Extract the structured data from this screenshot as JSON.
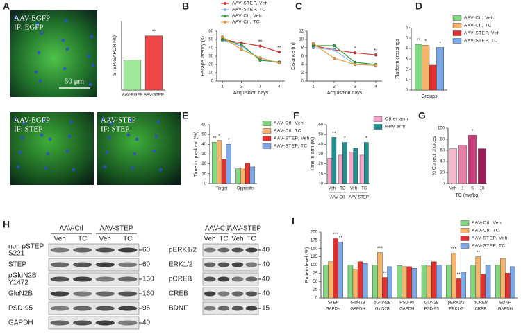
{
  "figure": {
    "images": {
      "label": "A",
      "items": [
        {
          "lines": [
            "AAV-EGFP",
            "IF: EGFP"
          ],
          "scale": "50 μm"
        },
        {
          "lines": [
            "AAV-EGFP",
            "IF: STEP"
          ]
        },
        {
          "lines": [
            "AAV-STEP",
            "IF: STEP"
          ]
        }
      ]
    },
    "blots": {
      "label": "H",
      "panels": [
        {
          "groups": [
            "AAV-Ctl",
            "AAV-STEP"
          ],
          "lanes": [
            "Veh",
            "TC",
            "Veh",
            "TC"
          ],
          "rows": [
            {
              "lines": [
                "non pSTEP",
                "S221"
              ],
              "mw": 60
            },
            {
              "lines": [
                "STEP"
              ],
              "mw": 60
            },
            {
              "lines": [
                "pGluN2B",
                "Y1472"
              ],
              "mw": 160
            },
            {
              "lines": [
                "GluN2B"
              ],
              "mw": 160
            },
            {
              "lines": [
                "PSD-95"
              ],
              "mw": 95
            },
            {
              "lines": [
                "GAPDH"
              ],
              "mw": 40
            }
          ]
        },
        {
          "groups": [
            "AAV-Ctl",
            "AAV-STEP"
          ],
          "lanes": [
            "Veh",
            "TC",
            "Veh",
            "TC"
          ],
          "rows": [
            {
              "lines": [
                "pERK1/2"
              ],
              "mw": 40
            },
            {
              "lines": [
                "ERK1/2"
              ],
              "mw": 40
            },
            {
              "lines": [
                "pCREB"
              ],
              "mw": 40
            },
            {
              "lines": [
                "CREB"
              ],
              "mw": 40
            },
            {
              "lines": [
                "BDNF"
              ],
              "mw": 15
            }
          ]
        }
      ]
    }
  },
  "chart_data": [
    {
      "type": "bar",
      "ylabel": "STEP/GAPDH (%)",
      "categories": [
        "AAV-EGFP",
        "AAV-STEP"
      ],
      "series": [
        {
          "colors": [
            "#9ee89a",
            "#ef4747"
          ],
          "values": [
            100,
            180
          ]
        }
      ],
      "ylim": [
        0,
        230
      ],
      "annotations": [
        {
          "text": "**",
          "category": 1
        }
      ]
    },
    {
      "type": "line",
      "label": "B",
      "ylabel": "Escape latency (s)",
      "xlabel": "Acquisition days",
      "x": [
        1,
        2,
        3,
        4
      ],
      "xlim": [
        0.7,
        4.3
      ],
      "xticks": [
        1,
        2,
        3,
        4
      ],
      "ylim": [
        0,
        60
      ],
      "yticks": [
        0,
        10,
        20,
        30,
        40,
        50,
        60
      ],
      "legend": "top",
      "series": [
        {
          "name": "AAV-STEP, Veh",
          "color": "#d93030",
          "values": [
            50,
            46,
            42,
            35
          ]
        },
        {
          "name": "AAV-STEP, TC",
          "color": "#8fb4e8",
          "values": [
            49,
            42,
            26,
            22
          ]
        },
        {
          "name": "AAV-Ctl, Veh",
          "color": "#2e9e3a",
          "values": [
            50,
            44,
            25,
            23
          ]
        },
        {
          "name": "AAV-Ctl, TC",
          "color": "#e8a040",
          "values": [
            53,
            38,
            28,
            22
          ]
        }
      ],
      "annotations": [
        {
          "text": "**",
          "x": 3
        },
        {
          "text": "**",
          "x": 4
        }
      ]
    },
    {
      "type": "line",
      "label": "C",
      "ylabel": "Distance (m)",
      "xlabel": "Acquisition days",
      "x": [
        1,
        2,
        3,
        4
      ],
      "xlim": [
        0.7,
        4.3
      ],
      "xticks": [
        1,
        2,
        3,
        4
      ],
      "ylim": [
        0,
        12
      ],
      "yticks": [
        0,
        2,
        4,
        6,
        8,
        10,
        12
      ],
      "series": [
        {
          "color": "#d93030",
          "values": [
            8.5,
            7.5,
            6.8,
            6.3
          ]
        },
        {
          "color": "#8fb4e8",
          "values": [
            8,
            7.5,
            4,
            3.8
          ]
        },
        {
          "color": "#2e9e3a",
          "values": [
            8.5,
            8.5,
            4.5,
            4
          ]
        },
        {
          "color": "#e8a040",
          "values": [
            9,
            5.5,
            4,
            3.8
          ]
        }
      ],
      "annotations": [
        {
          "text": "*",
          "x": 3
        },
        {
          "text": "**",
          "x": 4
        }
      ]
    },
    {
      "type": "bar",
      "label": "D",
      "ylabel": "Platform crossings",
      "xlabel": "Groups",
      "categories": [
        null
      ],
      "ylim": [
        0,
        6
      ],
      "yticks": [
        0,
        1,
        2,
        3,
        4,
        5,
        6
      ],
      "legend": "right",
      "series": [
        {
          "name": "AAV-Ctl, Veh",
          "color": "#80d880",
          "values": [
            4.4
          ]
        },
        {
          "name": "AAV-Ctl, TC",
          "color": "#f5b46a",
          "values": [
            4.3
          ]
        },
        {
          "name": "AAV-STEP, Veh",
          "color": "#e03030",
          "values": [
            2.4
          ]
        },
        {
          "name": "AAV-STEP, TC",
          "color": "#7aa8e8",
          "values": [
            4.1
          ]
        }
      ],
      "annotations": [
        {
          "text": "**",
          "category": 0,
          "series": 0
        },
        {
          "text": "*",
          "category": 0,
          "series": 1
        },
        {
          "text": "*",
          "category": 0,
          "series": 3
        }
      ]
    },
    {
      "type": "bar",
      "label": "E",
      "ylabel": "Time in quadrant (%)",
      "categories": [
        "Target",
        "Opposite"
      ],
      "ylim": [
        0,
        60
      ],
      "yticks": [
        0,
        10,
        20,
        30,
        40,
        50,
        60
      ],
      "legend": "right",
      "series": [
        {
          "name": "AAV-Ctl, Veh",
          "color": "#80d880",
          "values": [
            42,
            15
          ]
        },
        {
          "name": "AAV-Ctl, TC",
          "color": "#f5b46a",
          "values": [
            44,
            16
          ]
        },
        {
          "name": "AAV-STEP, Veh",
          "color": "#e03030",
          "values": [
            25,
            21
          ]
        },
        {
          "name": "AAV-STEP, TC",
          "color": "#7aa8e8",
          "values": [
            40,
            17
          ]
        }
      ],
      "annotations": [
        {
          "text": "**",
          "category": 0,
          "series": 0
        },
        {
          "text": "*",
          "category": 0,
          "series": 1
        },
        {
          "text": "*",
          "category": 0,
          "series": 3
        }
      ]
    },
    {
      "type": "bar",
      "label": "F",
      "ylabel": "Time in arm (%)",
      "categories": [
        "Veh",
        "TC",
        "Veh",
        "TC"
      ],
      "group_labels": [
        "AAV-Ctl",
        "AAV-STEP"
      ],
      "ylim": [
        0,
        60
      ],
      "yticks": [
        0,
        10,
        20,
        30,
        40,
        50,
        60
      ],
      "legend": "right",
      "series": [
        {
          "name": "Other arm",
          "color": "#f4a6c8",
          "values": [
            26,
            29,
            32,
            29
          ]
        },
        {
          "name": "New arm",
          "color": "#1f8f8f",
          "values": [
            47,
            42,
            36,
            42
          ]
        }
      ],
      "annotations": [
        {
          "text": "**",
          "category": 0,
          "series": 1
        },
        {
          "text": "*",
          "category": 1,
          "series": 1
        },
        {
          "text": "*",
          "category": 3,
          "series": 1
        }
      ]
    },
    {
      "type": "bar",
      "label": "G",
      "ylabel": "% Correct choices",
      "xlabel": "TC (mg/kg)",
      "categories": [
        "Veh",
        "1",
        "5",
        "10"
      ],
      "ylim": [
        0,
        100
      ],
      "yticks": [
        0,
        20,
        40,
        60,
        80,
        100
      ],
      "series": [
        {
          "colors": [
            "#f6b8cf",
            "#e77fa8",
            "#c83a78",
            "#9a1e55"
          ],
          "values": [
            63,
            69,
            87,
            63
          ]
        }
      ],
      "annotations": [
        {
          "text": "*",
          "category": 2
        }
      ]
    },
    {
      "type": "bar",
      "label": "I",
      "ylabel": "Protein level (%)",
      "ylim": [
        0,
        200
      ],
      "yticks": [
        0,
        25,
        50,
        75,
        100,
        125,
        150,
        175,
        200
      ],
      "legend": "right",
      "categories": [
        "STEP",
        "GluN2B",
        "pGluN2B",
        "PSD-95",
        "GluN2B",
        "pERK1/2",
        "pCREB",
        "BDNF"
      ],
      "category_sublabels": [
        "GAPDH",
        "GAPDH",
        "GluN2B",
        "GAPDH",
        "PSD-95",
        "ERK1/2",
        "CREB",
        "GAPDH"
      ],
      "series": [
        {
          "name": "AAV-Ctl, Veh",
          "color": "#80d880",
          "values": [
            100,
            100,
            100,
            98,
            100,
            100,
            100,
            100
          ]
        },
        {
          "name": "AAV-Ctl, TC",
          "color": "#f5b46a",
          "values": [
            110,
            88,
            138,
            95,
            97,
            135,
            125,
            120
          ]
        },
        {
          "name": "AAV-STEP, Veh",
          "color": "#e03030",
          "values": [
            180,
            110,
            62,
            95,
            110,
            58,
            72,
            75
          ]
        },
        {
          "name": "AAV-STEP, TC",
          "color": "#7aa8e8",
          "values": [
            170,
            105,
            95,
            90,
            100,
            78,
            100,
            95
          ]
        }
      ],
      "annotations": [
        {
          "text": "***",
          "category": 0,
          "series": 2
        },
        {
          "text": "**",
          "category": 0,
          "series": 3
        },
        {
          "text": "***",
          "category": 2,
          "series": 1
        },
        {
          "text": "**",
          "category": 2,
          "series": 2
        },
        {
          "text": "***",
          "category": 5,
          "series": 1
        },
        {
          "text": "**",
          "category": 5,
          "series": 2
        },
        {
          "text": "**",
          "category": 6,
          "series": 1
        }
      ]
    }
  ]
}
